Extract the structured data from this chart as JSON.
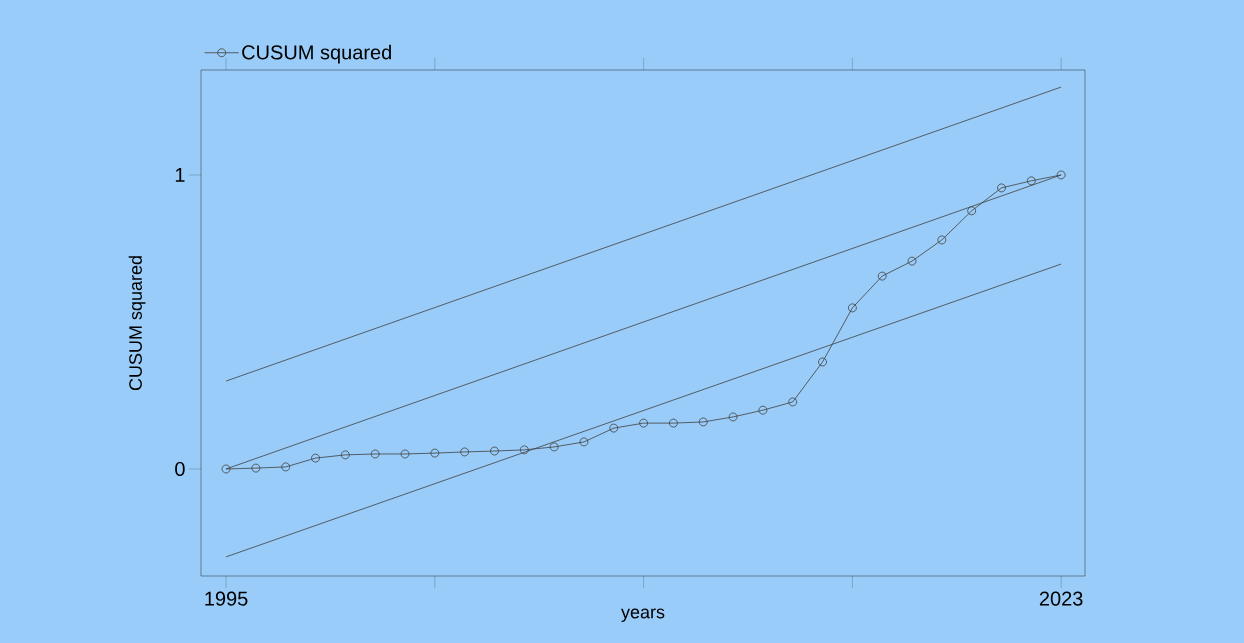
{
  "chart_data": {
    "type": "line",
    "xlabel": "years",
    "ylabel": "CUSUM squared",
    "xlim": [
      1994.16,
      2023.8
    ],
    "ylim": [
      -0.364,
      1.357
    ],
    "xticks": [
      1995,
      {
        "value": 2002,
        "label": null
      },
      {
        "value": 2009,
        "label": null
      },
      {
        "value": 2016,
        "label": null
      },
      2023
    ],
    "yticks": [
      0,
      1
    ],
    "legend": "top left",
    "grid": false,
    "series": [
      {
        "name": "CUSUM squared",
        "color": "#404040",
        "marker": "circle",
        "x": [
          1995,
          1996,
          1997,
          1998,
          1999,
          2000,
          2001,
          2002,
          2003,
          2004,
          2005,
          2006,
          2007,
          2008,
          2009,
          2010,
          2011,
          2012,
          2013,
          2014,
          2015,
          2016,
          2017,
          2018,
          2019,
          2020,
          2021,
          2022,
          2023
        ],
        "values": [
          0,
          0.003,
          0.007,
          0.037,
          0.048,
          0.051,
          0.051,
          0.054,
          0.058,
          0.061,
          0.065,
          0.075,
          0.092,
          0.139,
          0.156,
          0.156,
          0.16,
          0.177,
          0.2,
          0.228,
          0.364,
          0.548,
          0.656,
          0.707,
          0.779,
          0.878,
          0.956,
          0.98,
          1
        ]
      },
      {
        "color": "#404040",
        "marker": "none",
        "x": [
          1995,
          2023
        ],
        "values": [
          0.299,
          1.299
        ]
      },
      {
        "color": "#404040",
        "marker": "none",
        "x": [
          1995,
          2023
        ],
        "values": [
          0,
          1
        ]
      },
      {
        "color": "#404040",
        "marker": "none",
        "x": [
          1995,
          2023
        ],
        "values": [
          -0.299,
          0.697
        ]
      }
    ]
  }
}
